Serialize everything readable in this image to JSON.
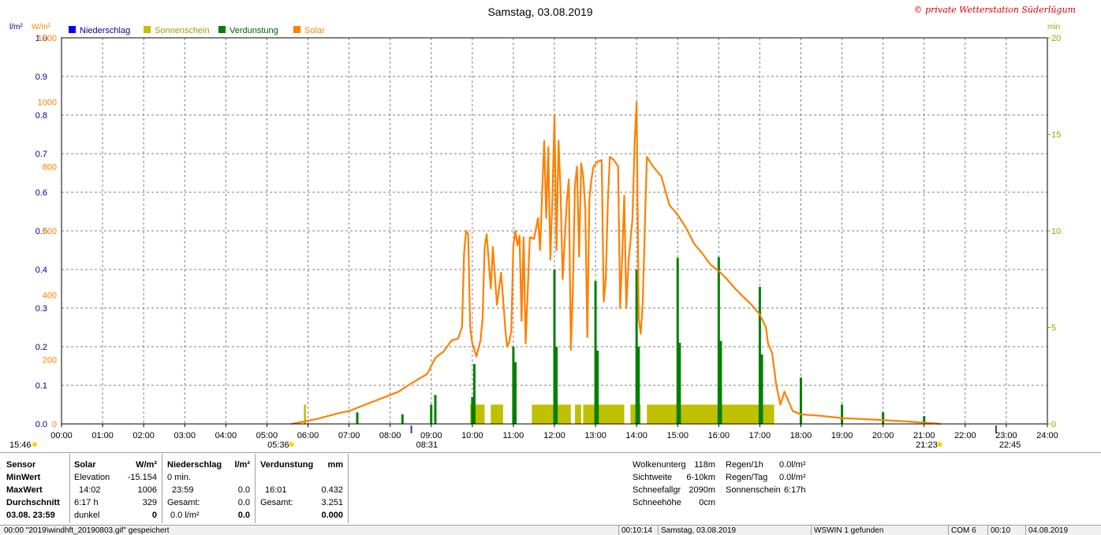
{
  "chart_data": {
    "type": "line",
    "title": "Samstag, 03.08.2019",
    "copyright": "© private Wetterstation Süderlügum",
    "legend": [
      "Niederschlag",
      "Sonnenschein",
      "Verdunstung",
      "Solar"
    ],
    "left_unit_1": "l/m²",
    "left_unit_2": "W/m²",
    "right_unit": "min",
    "x_ticks": [
      "00:00",
      "01:00",
      "02:00",
      "03:00",
      "04:00",
      "05:00",
      "06:00",
      "07:00",
      "08:00",
      "09:00",
      "10:00",
      "11:00",
      "12:00",
      "13:00",
      "14:00",
      "15:00",
      "16:00",
      "17:00",
      "18:00",
      "19:00",
      "20:00",
      "21:00",
      "22:00",
      "23:00",
      "24:00"
    ],
    "y_rain_ticks": [
      "0.0",
      "0.1",
      "0.2",
      "0.3",
      "0.4",
      "0.5",
      "0.6",
      "0.7",
      "0.8",
      "0.9",
      "1.0"
    ],
    "y_solar_ticks": [
      "0",
      "200",
      "400",
      "600",
      "800",
      "1000",
      "1200"
    ],
    "y_min_ticks": [
      "0",
      "5",
      "10",
      "15",
      "20"
    ],
    "xlim_hours": [
      0,
      24
    ],
    "ylim_solar": [
      0,
      1200
    ],
    "ylim_rain": [
      0,
      1.0
    ],
    "ylim_sun_min": [
      0,
      20
    ],
    "colors": {
      "rain": "#0000ff",
      "sunshine": "#c0c000",
      "evaporation": "#008000",
      "solar": "#ff8000",
      "grid": "#808080"
    },
    "annotations": {
      "sunrise_time": "05:36",
      "sunset_time": "21:23",
      "moonrise_time": "08:31",
      "moonset_time": "22:45",
      "left_time": "15:46",
      "sunrise_h": 5.6,
      "sunset_h": 21.383,
      "moonrise_h": 8.517,
      "moonset_h": 22.75
    },
    "series": [
      {
        "name": "Solar",
        "points": [
          [
            5.6,
            0
          ],
          [
            5.8,
            5
          ],
          [
            6.0,
            10
          ],
          [
            6.2,
            15
          ],
          [
            6.5,
            25
          ],
          [
            6.8,
            35
          ],
          [
            7.0,
            40
          ],
          [
            7.3,
            55
          ],
          [
            7.6,
            70
          ],
          [
            7.9,
            85
          ],
          [
            8.2,
            100
          ],
          [
            8.5,
            125
          ],
          [
            8.7,
            140
          ],
          [
            8.9,
            155
          ],
          [
            9.1,
            205
          ],
          [
            9.3,
            225
          ],
          [
            9.5,
            260
          ],
          [
            9.65,
            265
          ],
          [
            9.75,
            300
          ],
          [
            9.8,
            530
          ],
          [
            9.85,
            600
          ],
          [
            9.9,
            590
          ],
          [
            9.95,
            300
          ],
          [
            10.0,
            250
          ],
          [
            10.1,
            210
          ],
          [
            10.2,
            260
          ],
          [
            10.25,
            330
          ],
          [
            10.3,
            550
          ],
          [
            10.35,
            590
          ],
          [
            10.45,
            420
          ],
          [
            10.5,
            550
          ],
          [
            10.6,
            370
          ],
          [
            10.7,
            470
          ],
          [
            10.75,
            390
          ],
          [
            10.8,
            300
          ],
          [
            10.85,
            240
          ],
          [
            10.9,
            255
          ],
          [
            10.95,
            290
          ],
          [
            11.0,
            555
          ],
          [
            11.05,
            600
          ],
          [
            11.1,
            555
          ],
          [
            11.15,
            585
          ],
          [
            11.2,
            320
          ],
          [
            11.25,
            580
          ],
          [
            11.3,
            250
          ],
          [
            11.4,
            580
          ],
          [
            11.5,
            575
          ],
          [
            11.6,
            640
          ],
          [
            11.65,
            540
          ],
          [
            11.7,
            720
          ],
          [
            11.75,
            880
          ],
          [
            11.8,
            640
          ],
          [
            11.85,
            860
          ],
          [
            11.9,
            510
          ],
          [
            11.95,
            700
          ],
          [
            12.0,
            960
          ],
          [
            12.05,
            540
          ],
          [
            12.1,
            880
          ],
          [
            12.15,
            720
          ],
          [
            12.2,
            450
          ],
          [
            12.3,
            690
          ],
          [
            12.35,
            760
          ],
          [
            12.4,
            230
          ],
          [
            12.45,
            420
          ],
          [
            12.5,
            740
          ],
          [
            12.55,
            800
          ],
          [
            12.6,
            520
          ],
          [
            12.65,
            810
          ],
          [
            12.7,
            770
          ],
          [
            12.75,
            670
          ],
          [
            12.8,
            270
          ],
          [
            12.85,
            700
          ],
          [
            12.9,
            760
          ],
          [
            12.95,
            800
          ],
          [
            13.05,
            815
          ],
          [
            13.15,
            820
          ],
          [
            13.2,
            380
          ],
          [
            13.25,
            450
          ],
          [
            13.3,
            690
          ],
          [
            13.35,
            830
          ],
          [
            13.45,
            820
          ],
          [
            13.55,
            800
          ],
          [
            13.6,
            360
          ],
          [
            13.65,
            520
          ],
          [
            13.7,
            710
          ],
          [
            13.75,
            360
          ],
          [
            13.8,
            500
          ],
          [
            13.9,
            640
          ],
          [
            13.95,
            870
          ],
          [
            14.0,
            1000
          ],
          [
            14.05,
            330
          ],
          [
            14.1,
            280
          ],
          [
            14.15,
            380
          ],
          [
            14.2,
            610
          ],
          [
            14.25,
            830
          ],
          [
            14.4,
            800
          ],
          [
            14.6,
            770
          ],
          [
            14.8,
            680
          ],
          [
            15.0,
            650
          ],
          [
            15.2,
            610
          ],
          [
            15.4,
            560
          ],
          [
            15.6,
            530
          ],
          [
            15.8,
            495
          ],
          [
            16.0,
            475
          ],
          [
            16.2,
            450
          ],
          [
            16.4,
            420
          ],
          [
            16.6,
            395
          ],
          [
            16.8,
            370
          ],
          [
            17.0,
            340
          ],
          [
            17.15,
            300
          ],
          [
            17.2,
            250
          ],
          [
            17.3,
            220
          ],
          [
            17.4,
            120
          ],
          [
            17.5,
            60
          ],
          [
            17.6,
            100
          ],
          [
            17.7,
            70
          ],
          [
            17.8,
            40
          ],
          [
            18.0,
            30
          ],
          [
            18.5,
            25
          ],
          [
            19.0,
            18
          ],
          [
            19.5,
            15
          ],
          [
            20.0,
            12
          ],
          [
            20.5,
            8
          ],
          [
            21.0,
            4
          ],
          [
            21.4,
            0
          ]
        ]
      },
      {
        "name": "Sonnenschein",
        "min_per_10min": 1,
        "intervals": [
          [
            5.9,
            5.95
          ],
          [
            9.95,
            10.3
          ],
          [
            10.45,
            10.75
          ],
          [
            11.45,
            12.4
          ],
          [
            12.5,
            12.65
          ],
          [
            12.7,
            13.0
          ],
          [
            13.05,
            13.7
          ],
          [
            13.85,
            14.1
          ],
          [
            14.25,
            17.35
          ]
        ]
      },
      {
        "name": "Verdunstung",
        "bars": [
          [
            7.2,
            0.03
          ],
          [
            8.3,
            0.025
          ],
          [
            9.0,
            0.05
          ],
          [
            9.1,
            0.075
          ],
          [
            10.0,
            0.07
          ],
          [
            10.05,
            0.155
          ],
          [
            11.0,
            0.2
          ],
          [
            11.05,
            0.16
          ],
          [
            12.0,
            0.4
          ],
          [
            12.05,
            0.2
          ],
          [
            13.0,
            0.37
          ],
          [
            13.05,
            0.19
          ],
          [
            14.0,
            0.4
          ],
          [
            14.05,
            0.2
          ],
          [
            15.0,
            0.43
          ],
          [
            15.05,
            0.21
          ],
          [
            16.0,
            0.432
          ],
          [
            16.05,
            0.215
          ],
          [
            17.0,
            0.355
          ],
          [
            17.05,
            0.18
          ],
          [
            18.0,
            0.12
          ],
          [
            19.0,
            0.05
          ],
          [
            20.0,
            0.03
          ],
          [
            21.0,
            0.02
          ]
        ]
      }
    ]
  },
  "panel": {
    "col1": [
      "Sensor",
      "MinWert",
      "MaxWert",
      "Durchschnitt",
      "03.08.  23:59"
    ],
    "solar": {
      "header": "Solar",
      "unit": "W/m²",
      "r1l": "Elevation",
      "r1r": "-15.154",
      "r2l": "14:02",
      "r2r": "1006",
      "r3l": "6:17 h",
      "r3r": "329",
      "r4l": "dunkel",
      "r4r": "0"
    },
    "rain": {
      "header": "Niederschlag",
      "unit": "l/m²",
      "r1l": "0 min.",
      "r2l": "23:59",
      "r2r": "0.0",
      "r3l": "Gesamt:",
      "r3r": "0.0",
      "r4l": "0.0 l/m²",
      "r4r": "0.0"
    },
    "evap": {
      "header": "Verdunstung",
      "unit": "mm",
      "r2l": "16:01",
      "r2r": "0.432",
      "r3l": "Gesamt:",
      "r3r": "3.251",
      "r4r": "0.000"
    },
    "misc": {
      "l1": "Wolkenunterg",
      "v1": "118m",
      "l2": "Sichtweite",
      "v2": "6-10km",
      "l3": "Schneefallgr",
      "v3": "2090m",
      "l4": "Schneehöhe",
      "v4": "0cm"
    },
    "misc2": {
      "l1": "Regen/1h",
      "v1": "0.0l/m²",
      "l2": "Regen/Tag",
      "v2": "0.0l/m²",
      "l3": "Sonnenschein",
      "v3": "6:17h"
    }
  },
  "status": {
    "s1": "00:00  \"2019\\windhft_20190803.gif\" gespeichert",
    "s2": "00:10:14",
    "s3": "Samstag, 03.08.2019",
    "s4": "WSWIN 1 gefunden",
    "s5": "COM 6",
    "s6": "00:10",
    "s7": "04.08.2019"
  }
}
